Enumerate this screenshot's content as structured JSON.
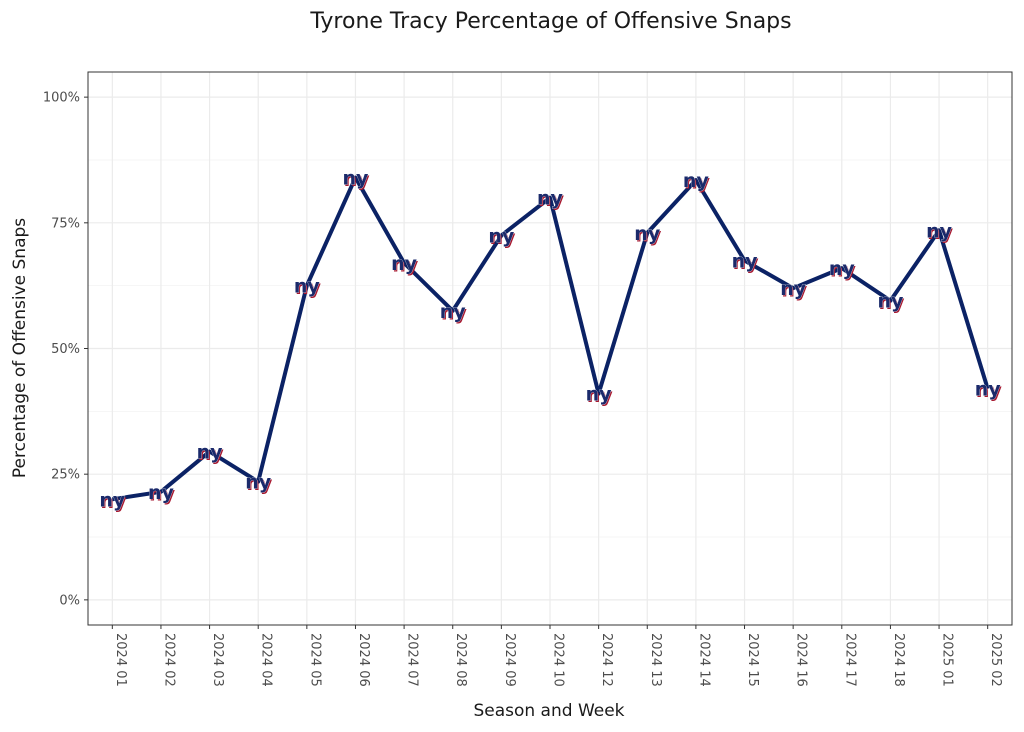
{
  "chart_data": {
    "type": "line",
    "title": "Tyrone Tracy Percentage of Offensive Snaps",
    "xlabel": "Season and Week",
    "ylabel": "Percentage of Offensive Snaps",
    "ylim": [
      -0.05,
      1.05
    ],
    "y_ticks": [
      0,
      0.25,
      0.5,
      0.75,
      1.0
    ],
    "y_tick_labels": [
      "0%",
      "25%",
      "50%",
      "75%",
      "100%"
    ],
    "categories": [
      "2024 01",
      "2024 02",
      "2024 03",
      "2024 04",
      "2024 05",
      "2024 06",
      "2024 07",
      "2024 08",
      "2024 09",
      "2024 10",
      "2024 12",
      "2024 13",
      "2024 14",
      "2024 15",
      "2024 16",
      "2024 17",
      "2024 18",
      "2025 01",
      "2025 02"
    ],
    "series": [
      {
        "name": "Tyrone Tracy",
        "color": "#0b2265",
        "marker": "ny-logo",
        "marker_text": "ny",
        "values": [
          0.2,
          0.215,
          0.295,
          0.235,
          0.625,
          0.84,
          0.67,
          0.575,
          0.725,
          0.8,
          0.41,
          0.73,
          0.835,
          0.675,
          0.62,
          0.66,
          0.595,
          0.735,
          0.42
        ]
      }
    ],
    "grid": true,
    "legend": "none"
  }
}
